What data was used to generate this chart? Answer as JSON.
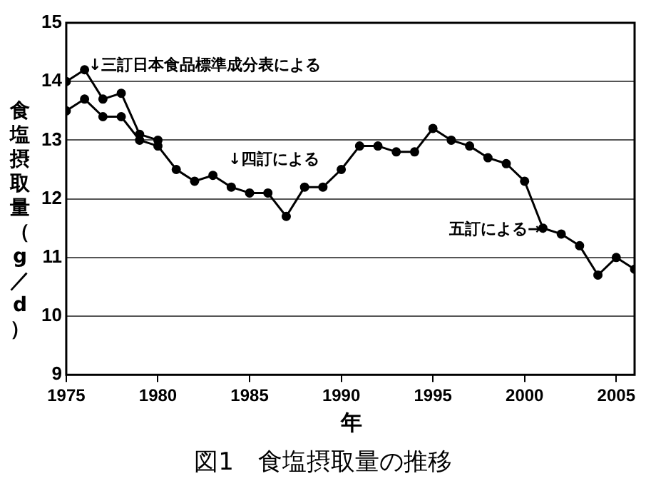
{
  "chart_data": {
    "type": "line",
    "title": "図1　食塩摂取量の推移",
    "xlabel": "年",
    "ylabel": "食塩摂取量（g／d）",
    "x": [
      1975,
      1976,
      1977,
      1978,
      1979,
      1980,
      1981,
      1982,
      1983,
      1984,
      1985,
      1986,
      1987,
      1988,
      1989,
      1990,
      1991,
      1992,
      1993,
      1994,
      1995,
      1996,
      1997,
      1998,
      1999,
      2000,
      2001,
      2002,
      2003,
      2004,
      2005,
      2006
    ],
    "series": [
      {
        "color": "#000000",
        "values": [
          13.5,
          13.7,
          13.4,
          13.4,
          13.0,
          12.9,
          12.5,
          12.3,
          12.4,
          12.2,
          12.1,
          12.1,
          11.7,
          12.2,
          12.2,
          12.5,
          12.9,
          12.9,
          12.8,
          12.8,
          13.2,
          13.0,
          12.9,
          12.7,
          12.6,
          12.3,
          11.5,
          11.4,
          11.2,
          10.7,
          11.0,
          10.8
        ]
      },
      {
        "color": "#000000",
        "x": [
          1975,
          1976,
          1977,
          1978,
          1979,
          1980
        ],
        "values": [
          14.0,
          14.2,
          13.7,
          13.8,
          13.1,
          13.0
        ]
      }
    ],
    "annotations": [
      "↓三訂日本食品標準成分表による",
      "↓四訂による",
      "五訂による→"
    ],
    "xlim": [
      1975,
      2006
    ],
    "xticks": [
      1975,
      1980,
      1985,
      1990,
      1995,
      2000,
      2005
    ],
    "ylim": [
      9,
      15
    ],
    "yticks": [
      9,
      10,
      11,
      12,
      13,
      14,
      15
    ],
    "grid": "y",
    "legend": false,
    "marker": "circle",
    "line_style": "solid"
  }
}
